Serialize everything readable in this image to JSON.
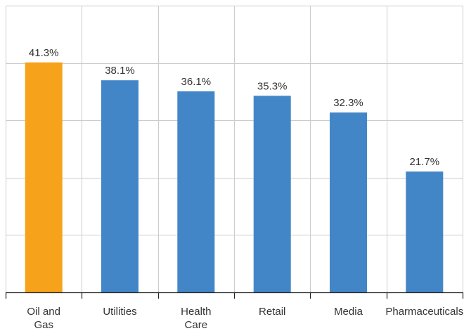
{
  "chart_data": {
    "type": "bar",
    "categories": [
      "Oil and\nGas",
      "Utilities",
      "Health\nCare",
      "Retail",
      "Media",
      "Pharmaceuticals"
    ],
    "values": [
      41.3,
      38.1,
      36.1,
      35.3,
      32.3,
      21.7
    ],
    "data_labels": [
      "41.3%",
      "38.1%",
      "36.1%",
      "35.3%",
      "32.3%",
      "21.7%"
    ],
    "highlight_index": 0,
    "colors": {
      "highlight": "#F7A21B",
      "bar": "#4286C8",
      "label": "#333333",
      "grid": "#CCCCCC",
      "axis": "#222222",
      "background": "#ffffff"
    },
    "ylim": [
      0,
      51.5
    ],
    "yticks": [
      0,
      10.3,
      20.6,
      30.9,
      41.2,
      51.5
    ],
    "grid": true,
    "title": "",
    "xlabel": "",
    "ylabel": ""
  }
}
